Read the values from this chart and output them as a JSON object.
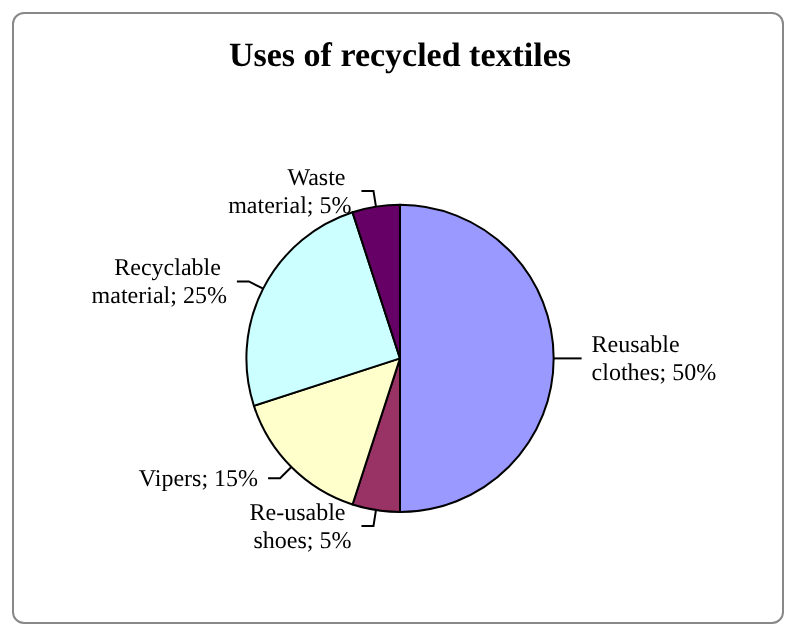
{
  "chart_data": {
    "type": "pie",
    "title": "Uses of recycled textiles",
    "categories": [
      "Reusable clothes",
      "Re-usable shoes",
      "Vipers",
      "Recyclable material",
      "Waste material"
    ],
    "values": [
      50,
      5,
      15,
      25,
      5
    ],
    "value_labels": [
      "; 50%",
      "; 5%",
      "; 15%",
      "; 25%",
      "; 5%"
    ],
    "colors": [
      "#9999ff",
      "#993366",
      "#ffffcc",
      "#ccffff",
      "#660066"
    ],
    "legend": false
  }
}
